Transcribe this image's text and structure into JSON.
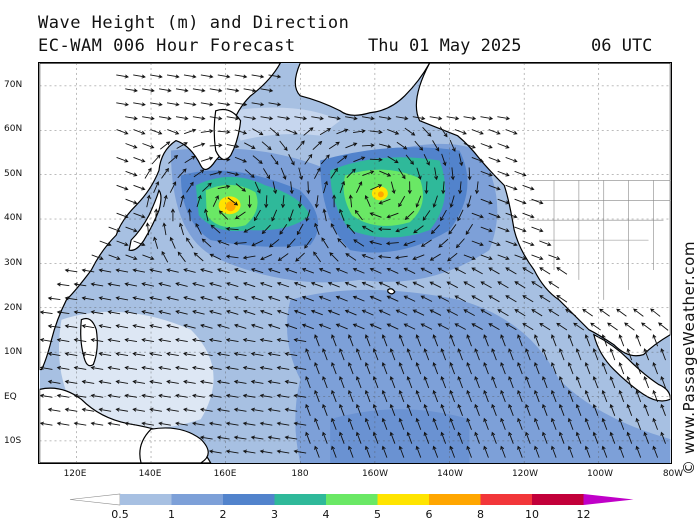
{
  "header": {
    "title": "Wave Height (m) and Direction",
    "model": "EC-WAM 006 Hour Forecast",
    "date": "Thu 01 May 2025",
    "time": "06 UTC"
  },
  "credit": "© www.PassageWeather.com",
  "map": {
    "lat_labels": [
      "70N",
      "60N",
      "50N",
      "40N",
      "30N",
      "20N",
      "10N",
      "EQ",
      "10S"
    ],
    "lon_labels": [
      "120E",
      "140E",
      "160E",
      "180",
      "160W",
      "140W",
      "120W",
      "100W",
      "80W"
    ],
    "colors": {
      "ocean_base": "#c8d8ee",
      "land": "#ffffff",
      "coast": "#000000",
      "arrow": "#111111"
    }
  },
  "colorbar": {
    "levels": [
      "0.5",
      "1",
      "2",
      "3",
      "4",
      "5",
      "6",
      "8",
      "10",
      "12"
    ],
    "colors": [
      "#dde7f4",
      "#a7c0e2",
      "#7da0d8",
      "#5283cc",
      "#2fb99a",
      "#6ae865",
      "#ffe400",
      "#ffa600",
      "#f2363a",
      "#c2003a",
      "#c000c8"
    ]
  }
}
